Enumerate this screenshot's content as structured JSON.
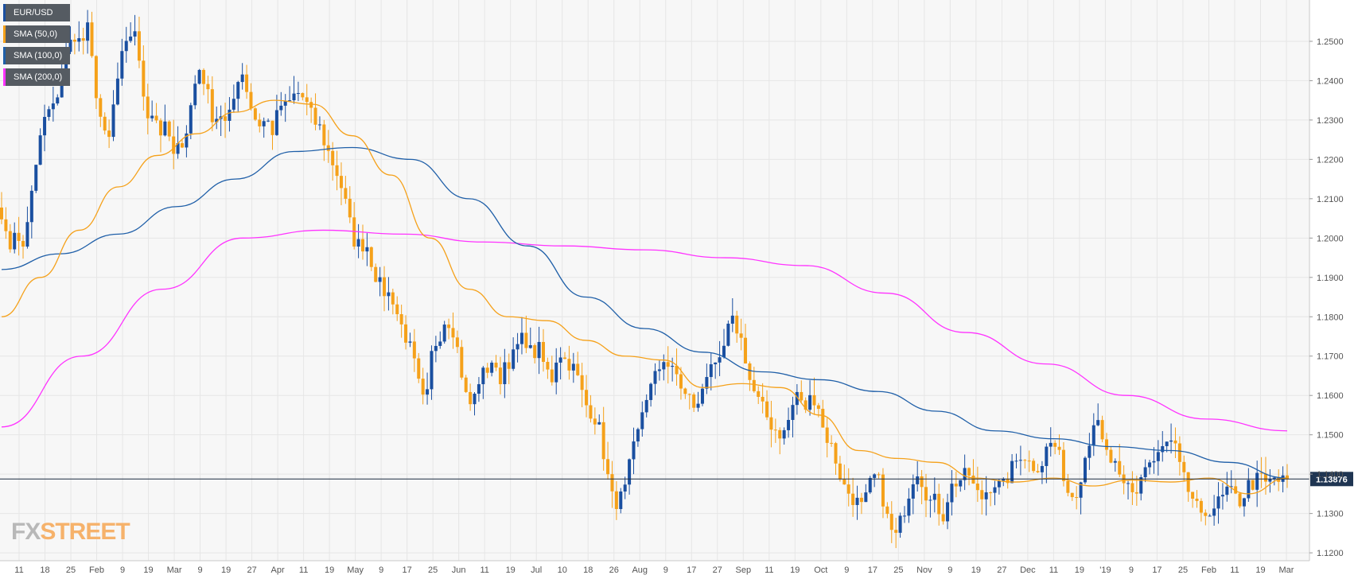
{
  "colors": {
    "background": "#f7f7f7",
    "grid": "#e6e6e6",
    "up": "#1a4fa0",
    "down": "#f5a11a",
    "sma50": "#f5a11a",
    "sma100": "#1f5fa8",
    "sma200": "#ff33ff",
    "price_line": "#1a2a40",
    "price_tag": "#1f3552"
  },
  "legend": [
    {
      "label": "EUR/USD",
      "color": "#1a4fa0"
    },
    {
      "label": "SMA (50,0)",
      "color": "#f5a11a"
    },
    {
      "label": "SMA (100,0)",
      "color": "#1f5fa8"
    },
    {
      "label": "SMA (200,0)",
      "color": "#ff33ff"
    }
  ],
  "logo": {
    "prefix": "FX",
    "suffix": "STREET"
  },
  "chart_data": {
    "type": "candlestick",
    "title": "",
    "instrument": "EUR/USD",
    "timeframe": "daily",
    "ylim": [
      1.118,
      1.2605
    ],
    "y_ticks": [
      "1.2500",
      "1.2400",
      "1.2300",
      "1.2200",
      "1.2100",
      "1.2000",
      "1.1900",
      "1.1800",
      "1.1700",
      "1.1600",
      "1.1500",
      "1.1400",
      "1.1300",
      "1.1200"
    ],
    "x_ticks": [
      "11",
      "18",
      "25",
      "Feb",
      "9",
      "19",
      "Mar",
      "9",
      "19",
      "27",
      "Apr",
      "11",
      "19",
      "May",
      "9",
      "17",
      "25",
      "Jun",
      "11",
      "19",
      "Jul",
      "10",
      "18",
      "26",
      "Aug",
      "9",
      "17",
      "27",
      "Sep",
      "11",
      "19",
      "Oct",
      "9",
      "17",
      "25",
      "Nov",
      "9",
      "19",
      "27",
      "Dec",
      "11",
      "19",
      "'19",
      "9",
      "17",
      "25",
      "Feb",
      "11",
      "19",
      "Mar"
    ],
    "last_price": "1.13876",
    "last_price_value": 1.13876,
    "ohlc_anchors": [
      [
        1.207,
        1.196,
        1.203
      ],
      [
        1.195,
        1.206,
        1.215
      ],
      [
        1.228,
        1.232,
        1.233
      ],
      [
        1.242,
        1.248,
        1.252
      ],
      [
        1.249,
        1.253,
        1.24
      ],
      [
        1.23,
        1.222,
        1.235
      ],
      [
        1.245,
        1.249,
        1.255
      ],
      [
        1.24,
        1.232,
        1.232
      ],
      [
        1.227,
        1.228,
        1.22
      ],
      [
        1.224,
        1.228,
        1.238
      ],
      [
        1.244,
        1.237,
        1.23
      ],
      [
        1.232,
        1.228,
        1.235
      ],
      [
        1.244,
        1.238,
        1.231
      ],
      [
        1.229,
        1.23,
        1.227
      ],
      [
        1.234,
        1.233,
        1.236
      ],
      [
        1.237,
        1.234,
        1.23
      ],
      [
        1.228,
        1.223,
        1.219
      ],
      [
        1.215,
        1.208,
        1.2
      ],
      [
        1.198,
        1.199,
        1.193
      ],
      [
        1.188,
        1.186,
        1.185
      ],
      [
        1.179,
        1.175,
        1.17
      ],
      [
        1.162,
        1.156,
        1.172
      ],
      [
        1.175,
        1.18,
        1.178
      ],
      [
        1.17,
        1.16,
        1.157
      ],
      [
        1.164,
        1.166,
        1.169
      ],
      [
        1.163,
        1.169,
        1.169
      ],
      [
        1.173,
        1.175,
        1.17
      ],
      [
        1.172,
        1.167,
        1.164
      ],
      [
        1.172,
        1.169,
        1.168
      ],
      [
        1.164,
        1.158,
        1.156
      ],
      [
        1.153,
        1.144,
        1.134
      ],
      [
        1.133,
        1.135,
        1.144
      ],
      [
        1.15,
        1.159,
        1.162
      ],
      [
        1.166,
        1.17,
        1.166
      ],
      [
        1.165,
        1.16,
        1.159
      ],
      [
        1.156,
        1.164,
        1.169
      ],
      [
        1.165,
        1.172,
        1.179
      ],
      [
        1.177,
        1.172,
        1.163
      ],
      [
        1.159,
        1.156,
        1.153
      ],
      [
        1.151,
        1.15,
        1.155
      ],
      [
        1.161,
        1.156,
        1.159
      ],
      [
        1.16,
        1.151,
        1.148
      ],
      [
        1.143,
        1.137,
        1.135
      ],
      [
        1.133,
        1.131,
        1.137
      ],
      [
        1.14,
        1.134,
        1.126
      ],
      [
        1.124,
        1.13,
        1.136
      ],
      [
        1.142,
        1.138,
        1.133
      ],
      [
        1.133,
        1.129,
        1.136
      ],
      [
        1.138,
        1.139,
        1.14
      ],
      [
        1.135,
        1.134,
        1.137
      ],
      [
        1.138,
        1.136,
        1.14
      ],
      [
        1.143,
        1.146,
        1.143
      ],
      [
        1.142,
        1.143,
        1.148
      ],
      [
        1.147,
        1.142,
        1.135
      ],
      [
        1.135,
        1.141,
        1.148
      ],
      [
        1.155,
        1.148,
        1.144
      ],
      [
        1.142,
        1.136,
        1.137
      ],
      [
        1.134,
        1.14,
        1.143
      ],
      [
        1.143,
        1.146,
        1.148
      ],
      [
        1.147,
        1.14,
        1.136
      ],
      [
        1.133,
        1.128,
        1.131
      ],
      [
        1.132,
        1.133,
        1.136
      ],
      [
        1.134,
        1.133,
        1.137
      ],
      [
        1.138,
        1.139,
        1.137
      ],
      [
        1.139,
        1.138,
        1.138
      ]
    ],
    "sma50_anchors": [
      1.18,
      1.19,
      1.202,
      1.213,
      1.221,
      1.2265,
      1.232,
      1.235,
      1.234,
      1.226,
      1.216,
      1.2,
      1.187,
      1.18,
      1.179,
      1.174,
      1.17,
      1.169,
      1.162,
      1.163,
      1.162,
      1.155,
      1.146,
      1.144,
      1.143,
      1.139,
      1.138,
      1.139,
      1.137,
      1.1385,
      1.138,
      1.139,
      1.135,
      1.139
    ],
    "sma100_anchors": [
      1.192,
      1.196,
      1.201,
      1.208,
      1.215,
      1.222,
      1.223,
      1.22,
      1.21,
      1.198,
      1.185,
      1.177,
      1.171,
      1.166,
      1.164,
      1.161,
      1.156,
      1.151,
      1.149,
      1.147,
      1.146,
      1.143,
      1.139
    ],
    "sma200_anchors": [
      1.152,
      1.17,
      1.187,
      1.2,
      1.202,
      1.201,
      1.199,
      1.198,
      1.197,
      1.195,
      1.193,
      1.186,
      1.176,
      1.168,
      1.16,
      1.154,
      1.151
    ]
  }
}
